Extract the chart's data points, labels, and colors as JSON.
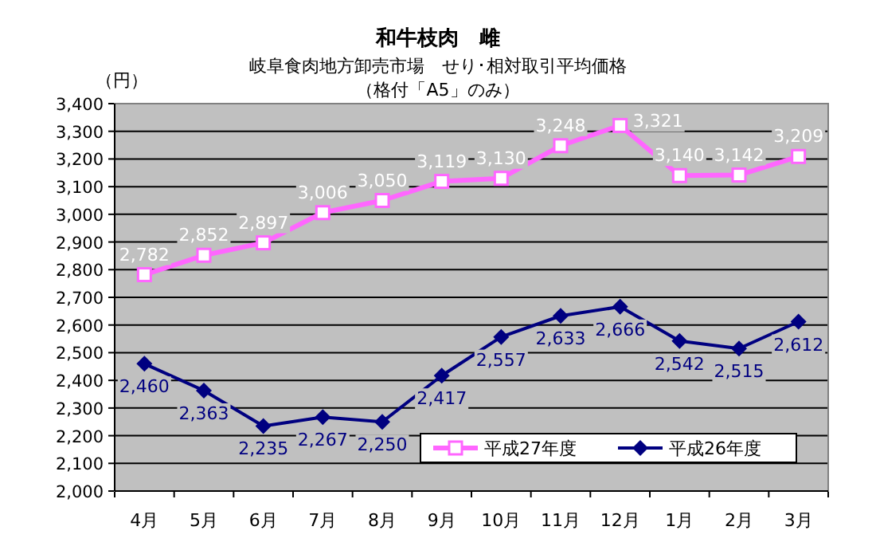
{
  "chart_data": {
    "type": "line",
    "title": "和牛枝肉　雌",
    "subtitle": "岐阜食肉地方卸売市場　せり･相対取引平均価格",
    "annotations": [
      "（格付「A5」のみ）"
    ],
    "ylabel": "（円）",
    "categories": [
      "4月",
      "5月",
      "6月",
      "7月",
      "8月",
      "9月",
      "10月",
      "11月",
      "12月",
      "1月",
      "2月",
      "3月"
    ],
    "series": [
      {
        "name": "平成27年度",
        "color": "#ff66ff",
        "marker": "square",
        "values": [
          2782,
          2852,
          2897,
          3006,
          3050,
          3119,
          3130,
          3248,
          3321,
          3140,
          3142,
          3209
        ],
        "value_labels": [
          "2,782",
          "2,852",
          "2,897",
          "3,006",
          "3,050",
          "3,119",
          "3,130",
          "3,248",
          "3,321",
          "3,140",
          "3,142",
          "3,209"
        ]
      },
      {
        "name": "平成26年度",
        "color": "#000080",
        "marker": "diamond",
        "values": [
          2460,
          2363,
          2235,
          2267,
          2250,
          2417,
          2557,
          2633,
          2666,
          2542,
          2515,
          2612
        ],
        "value_labels": [
          "2,460",
          "2,363",
          "2,235",
          "2,267",
          "2,250",
          "2,417",
          "2,557",
          "2,633",
          "2,666",
          "2,542",
          "2,515",
          "2,612"
        ]
      }
    ],
    "ylim": [
      2000,
      3400
    ],
    "yticks": [
      {
        "value": 2000,
        "label": "2,000"
      },
      {
        "value": 2100,
        "label": "2,100"
      },
      {
        "value": 2200,
        "label": "2,200"
      },
      {
        "value": 2300,
        "label": "2,300"
      },
      {
        "value": 2400,
        "label": "2,400"
      },
      {
        "value": 2500,
        "label": "2,500"
      },
      {
        "value": 2600,
        "label": "2,600"
      },
      {
        "value": 2700,
        "label": "2,700"
      },
      {
        "value": 2800,
        "label": "2,800"
      },
      {
        "value": 2900,
        "label": "2,900"
      },
      {
        "value": 3000,
        "label": "3,000"
      },
      {
        "value": 3100,
        "label": "3,100"
      },
      {
        "value": 3200,
        "label": "3,200"
      },
      {
        "value": 3300,
        "label": "3,300"
      },
      {
        "value": 3400,
        "label": "3,400"
      }
    ],
    "grid": "y",
    "legend": "bottom right"
  }
}
